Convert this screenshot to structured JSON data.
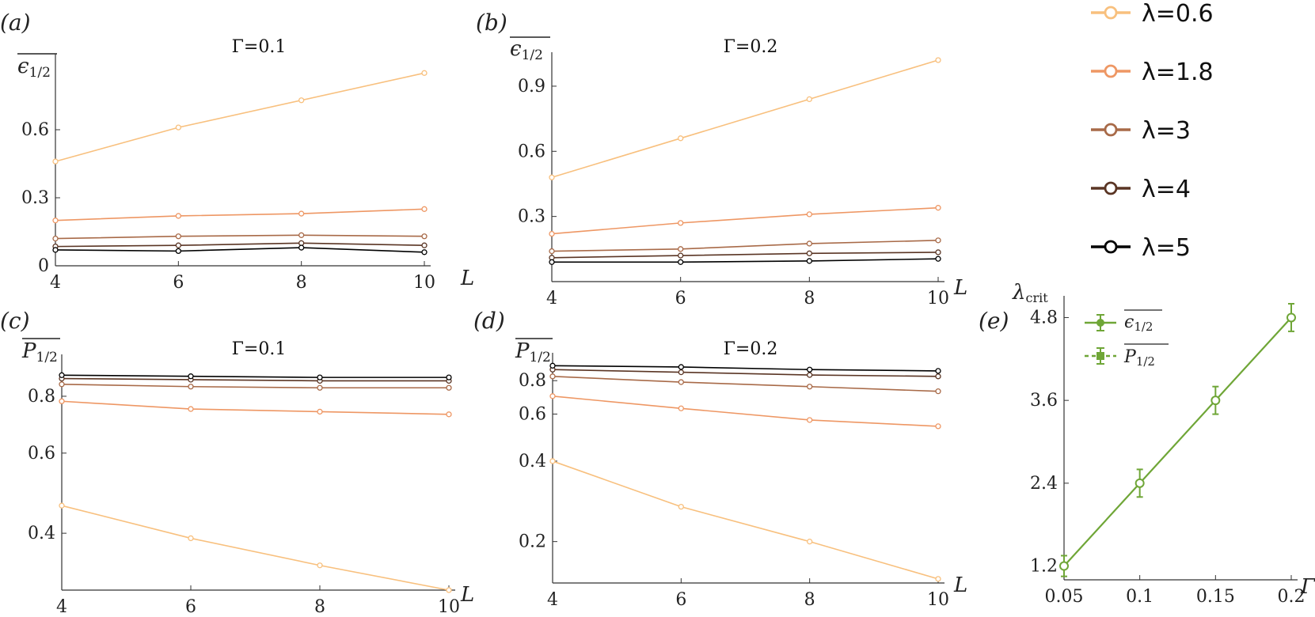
{
  "legend": {
    "entries": [
      {
        "label": "λ=0.6",
        "color": "#F8C07E"
      },
      {
        "label": "λ=1.8",
        "color": "#EE9764"
      },
      {
        "label": "λ=3",
        "color": "#A86A48"
      },
      {
        "label": "λ=4",
        "color": "#5A3524"
      },
      {
        "label": "λ=5",
        "color": "#000000"
      }
    ]
  },
  "panel_labels": [
    "(a)",
    "(b)",
    "(c)",
    "(d)",
    "(e)"
  ],
  "chart_data": [
    {
      "panel": "(a)",
      "type": "line",
      "title": "Γ=0.1",
      "ylabel": "ε1/2 (overlined)",
      "xlabel": "L",
      "xlim": [
        4,
        10
      ],
      "ylim": [
        0,
        0.9
      ],
      "xticks": [
        "4",
        "6",
        "8",
        "10"
      ],
      "yticks": [
        "0",
        "0.3",
        "0.6"
      ],
      "x": [
        4,
        6,
        8,
        10
      ],
      "series": [
        {
          "name": "λ=0.6",
          "values": [
            0.46,
            0.61,
            0.73,
            0.85
          ]
        },
        {
          "name": "λ=1.8",
          "values": [
            0.2,
            0.22,
            0.23,
            0.25
          ]
        },
        {
          "name": "λ=3",
          "values": [
            0.12,
            0.13,
            0.135,
            0.13
          ]
        },
        {
          "name": "λ=4",
          "values": [
            0.085,
            0.09,
            0.1,
            0.09
          ]
        },
        {
          "name": "λ=5",
          "values": [
            0.07,
            0.065,
            0.08,
            0.06
          ]
        }
      ]
    },
    {
      "panel": "(b)",
      "type": "line",
      "title": "Γ=0.2",
      "ylabel": "ε1/2 (overlined)",
      "xlabel": "L",
      "xlim": [
        4,
        10
      ],
      "ylim": [
        0,
        1.02
      ],
      "xticks": [
        "4",
        "6",
        "8",
        "10"
      ],
      "yticks": [
        "0.3",
        "0.6",
        "0.9"
      ],
      "x": [
        4,
        6,
        8,
        10
      ],
      "series": [
        {
          "name": "λ=0.6",
          "values": [
            0.48,
            0.66,
            0.84,
            1.02
          ]
        },
        {
          "name": "λ=1.8",
          "values": [
            0.22,
            0.27,
            0.31,
            0.34
          ]
        },
        {
          "name": "λ=3",
          "values": [
            0.14,
            0.15,
            0.175,
            0.19
          ]
        },
        {
          "name": "λ=4",
          "values": [
            0.11,
            0.12,
            0.13,
            0.135
          ]
        },
        {
          "name": "λ=5",
          "values": [
            0.09,
            0.09,
            0.095,
            0.105
          ]
        }
      ]
    },
    {
      "panel": "(c)",
      "type": "line",
      "title": "Γ=0.1",
      "ylabel": "P1/2 (overlined)",
      "xlabel": "L",
      "yscale": "log",
      "xlim": [
        4,
        10
      ],
      "ylim": [
        0.3,
        0.95
      ],
      "xticks": [
        "4",
        "6",
        "8",
        "10"
      ],
      "yticks": [
        "0.4",
        "0.6",
        "0.8"
      ],
      "x": [
        4,
        6,
        8,
        10
      ],
      "series": [
        {
          "name": "λ=0.6",
          "values": [
            0.46,
            0.39,
            0.34,
            0.3
          ]
        },
        {
          "name": "λ=1.8",
          "values": [
            0.78,
            0.75,
            0.74,
            0.73
          ]
        },
        {
          "name": "λ=3",
          "values": [
            0.85,
            0.84,
            0.835,
            0.835
          ]
        },
        {
          "name": "λ=4",
          "values": [
            0.875,
            0.87,
            0.865,
            0.865
          ]
        },
        {
          "name": "λ=5",
          "values": [
            0.89,
            0.885,
            0.88,
            0.88
          ]
        }
      ]
    },
    {
      "panel": "(d)",
      "type": "line",
      "title": "Γ=0.2",
      "ylabel": "P1/2 (overlined)",
      "xlabel": "L",
      "yscale": "log",
      "xlim": [
        4,
        10
      ],
      "ylim": [
        0.14,
        0.95
      ],
      "xticks": [
        "4",
        "6",
        "8",
        "10"
      ],
      "yticks": [
        "0.2",
        "0.4",
        "0.6",
        "0.8"
      ],
      "x": [
        4,
        6,
        8,
        10
      ],
      "series": [
        {
          "name": "λ=0.6",
          "values": [
            0.4,
            0.27,
            0.2,
            0.145
          ]
        },
        {
          "name": "λ=1.8",
          "values": [
            0.7,
            0.63,
            0.57,
            0.54
          ]
        },
        {
          "name": "λ=3",
          "values": [
            0.83,
            0.79,
            0.76,
            0.73
          ]
        },
        {
          "name": "λ=4",
          "values": [
            0.88,
            0.86,
            0.84,
            0.83
          ]
        },
        {
          "name": "λ=5",
          "values": [
            0.91,
            0.9,
            0.88,
            0.87
          ]
        }
      ]
    },
    {
      "panel": "(e)",
      "type": "line",
      "ylabel": "λcrit",
      "xlabel": "Γ",
      "xlim": [
        0.05,
        0.2
      ],
      "ylim": [
        1.0,
        5.0
      ],
      "xticks": [
        "0.05",
        "0.1",
        "0.15",
        "0.2"
      ],
      "yticks": [
        "1.2",
        "2.4",
        "3.6",
        "4.8"
      ],
      "x": [
        0.05,
        0.1,
        0.15,
        0.2
      ],
      "series": [
        {
          "name": "ε1/2",
          "values": [
            1.2,
            2.4,
            3.6,
            4.8
          ],
          "err": [
            0.15,
            0.2,
            0.2,
            0.2
          ],
          "color": "#6FA637"
        },
        {
          "name": "P1/2",
          "values": [
            1.2,
            2.4,
            3.6,
            4.8
          ],
          "err": [
            0.15,
            0.2,
            0.2,
            0.2
          ],
          "color": "#6FA637"
        }
      ]
    }
  ]
}
